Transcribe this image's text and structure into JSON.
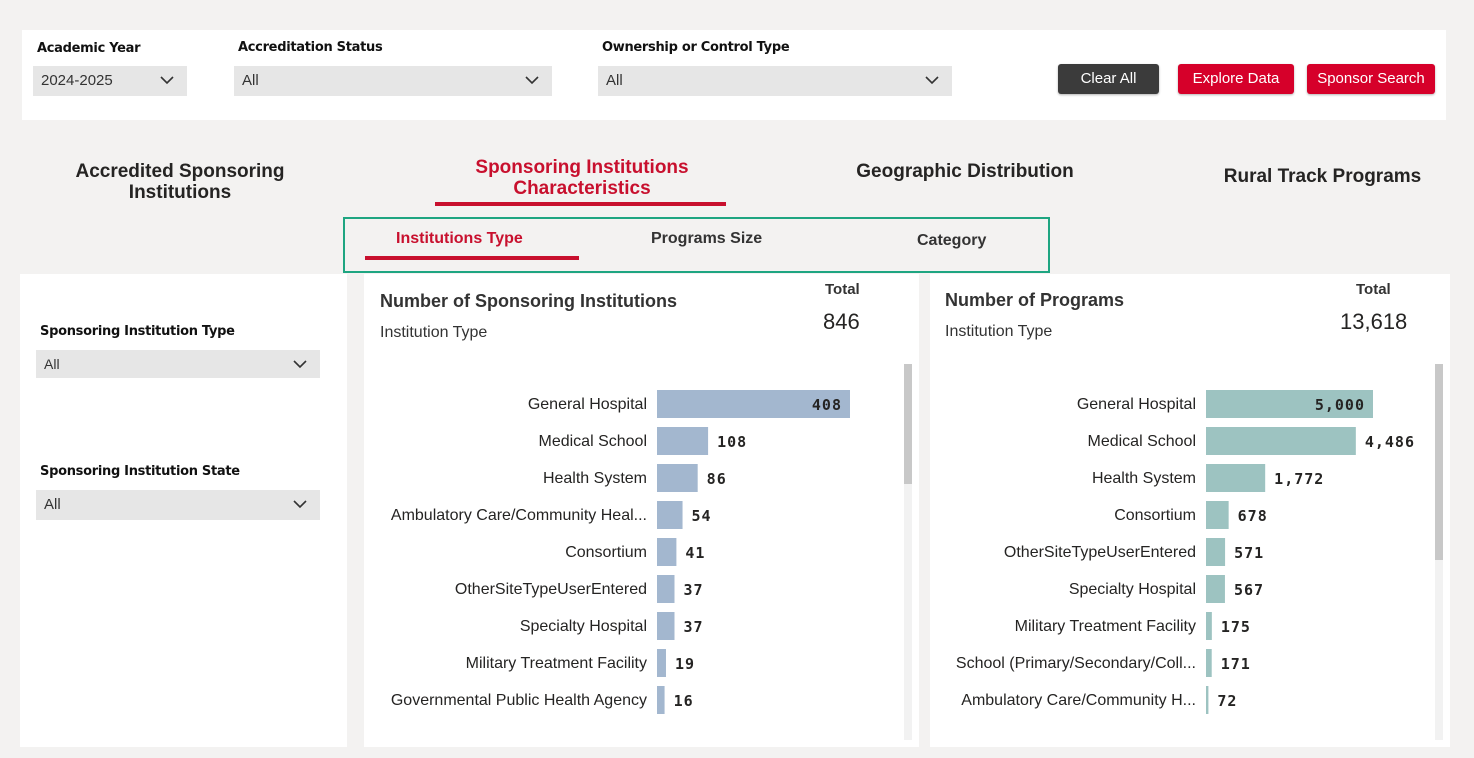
{
  "filters": {
    "academic_year": {
      "label": "Academic Year",
      "value": "2024-2025"
    },
    "accreditation_status": {
      "label": "Accreditation Status",
      "value": "All"
    },
    "ownership": {
      "label": "Ownership or Control Type",
      "value": "All"
    }
  },
  "buttons": {
    "clear": "Clear All",
    "explore": "Explore Data",
    "sponsor": "Sponsor Search"
  },
  "nav": {
    "tab1": "Accredited Sponsoring Institutions",
    "tab2": "Sponsoring Institutions Characteristics",
    "tab3": "Geographic Distribution",
    "tab4": "Rural Track Programs"
  },
  "subtabs": {
    "type": "Institutions Type",
    "size": "Programs Size",
    "category": "Category"
  },
  "side": {
    "type_label": "Sponsoring Institution Type",
    "type_value": "All",
    "state_label": "Sponsoring Institution State",
    "state_value": "All"
  },
  "colors": {
    "accent": "#c8102e",
    "bar_left": "#a3b7cf",
    "bar_right": "#9dc3c1",
    "highlight": "#1ea581"
  },
  "left_chart": {
    "title": "Number of Sponsoring Institutions",
    "subtitle": "Institution Type",
    "total_label": "Total",
    "total_value": "846"
  },
  "right_chart": {
    "title": "Number of Programs",
    "subtitle": "Institution Type",
    "total_label": "Total",
    "total_value": "13,618"
  },
  "chart_data": [
    {
      "type": "bar",
      "orientation": "horizontal",
      "title": "Number of Sponsoring Institutions",
      "subtitle": "Institution Type",
      "categories": [
        "General Hospital",
        "Medical School",
        "Health System",
        "Ambulatory Care/Community Heal...",
        "Consortium",
        "OtherSiteTypeUserEntered",
        "Specialty Hospital",
        "Military Treatment Facility",
        "Governmental Public Health Agency"
      ],
      "values": [
        408,
        108,
        86,
        54,
        41,
        37,
        37,
        19,
        16
      ],
      "value_labels": [
        "408",
        "108",
        "86",
        "54",
        "41",
        "37",
        "37",
        "19",
        "16"
      ],
      "xlim": [
        0,
        408
      ]
    },
    {
      "type": "bar",
      "orientation": "horizontal",
      "title": "Number of Programs",
      "subtitle": "Institution Type",
      "categories": [
        "General Hospital",
        "Medical School",
        "Health System",
        "Consortium",
        "OtherSiteTypeUserEntered",
        "Specialty Hospital",
        "Military Treatment Facility",
        "School (Primary/Secondary/Coll...",
        "Ambulatory Care/Community H..."
      ],
      "values": [
        5000,
        4486,
        1772,
        678,
        571,
        567,
        175,
        171,
        72
      ],
      "value_labels": [
        "5,000",
        "4,486",
        "1,772",
        "678",
        "571",
        "567",
        "175",
        "171",
        "72"
      ],
      "xlim": [
        0,
        5000
      ]
    }
  ]
}
